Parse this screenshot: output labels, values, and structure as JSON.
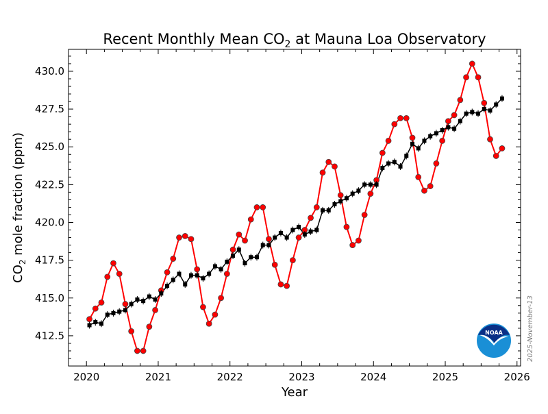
{
  "chart_data": {
    "type": "line",
    "title_pre": "Recent Monthly Mean CO",
    "title_sub": "2",
    "title_post": " at Mauna Loa Observatory",
    "xlabel": "Year",
    "ylabel_pre": "CO",
    "ylabel_sub": "2",
    "ylabel_post": " mole fraction (ppm)",
    "xlim": [
      2019.75,
      2026.05
    ],
    "ylim": [
      410.5,
      431.45
    ],
    "x_ticks": [
      "2020",
      "2021",
      "2022",
      "2023",
      "2024",
      "2025",
      "2026"
    ],
    "y_ticks": [
      "412.5",
      "415.0",
      "417.5",
      "420.0",
      "422.5",
      "425.0",
      "427.5",
      "430.0"
    ],
    "grid": false,
    "start": "2020-01",
    "series": [
      {
        "color": "#ff0000",
        "marker": "circle",
        "values": [
          413.6,
          414.3,
          414.7,
          416.4,
          417.3,
          416.6,
          414.6,
          412.8,
          411.5,
          411.5,
          413.1,
          414.2,
          415.5,
          416.7,
          417.6,
          419.0,
          419.1,
          418.9,
          416.9,
          414.4,
          413.3,
          413.9,
          415.0,
          416.6,
          418.2,
          419.2,
          418.8,
          420.2,
          421.0,
          421.0,
          418.9,
          417.2,
          415.9,
          415.8,
          417.5,
          419.0,
          419.5,
          420.3,
          421.0,
          423.3,
          424.0,
          423.7,
          421.8,
          419.7,
          418.5,
          418.8,
          420.5,
          421.9,
          422.8,
          424.6,
          425.4,
          426.5,
          426.9,
          426.9,
          425.6,
          423.0,
          422.1,
          422.4,
          423.9,
          425.4,
          426.7,
          427.1,
          428.1,
          429.6,
          430.5,
          429.6,
          427.9,
          425.5,
          424.4,
          424.9
        ]
      },
      {
        "color": "#000000",
        "marker": "square",
        "values": [
          413.2,
          413.4,
          413.3,
          413.9,
          414.0,
          414.1,
          414.2,
          414.6,
          414.9,
          414.8,
          415.1,
          414.9,
          415.3,
          415.8,
          416.2,
          416.6,
          415.9,
          416.5,
          416.5,
          416.3,
          416.6,
          417.1,
          416.9,
          417.4,
          417.8,
          418.2,
          417.3,
          417.7,
          417.7,
          418.5,
          418.5,
          419.0,
          419.3,
          419.0,
          419.5,
          419.7,
          419.2,
          419.4,
          419.5,
          420.8,
          420.8,
          421.2,
          421.4,
          421.6,
          421.9,
          422.1,
          422.5,
          422.5,
          422.5,
          423.6,
          423.9,
          424.0,
          423.7,
          424.4,
          425.2,
          424.9,
          425.4,
          425.7,
          425.9,
          426.1,
          426.3,
          426.2,
          426.7,
          427.2,
          427.3,
          427.2,
          427.5,
          427.4,
          427.8,
          428.2
        ]
      }
    ],
    "annotation_date": "2025-November-13",
    "logo_text": "NOAA",
    "colors": {
      "logo_dark": "#0a2f86",
      "logo_light": "#1a8fd6"
    }
  }
}
